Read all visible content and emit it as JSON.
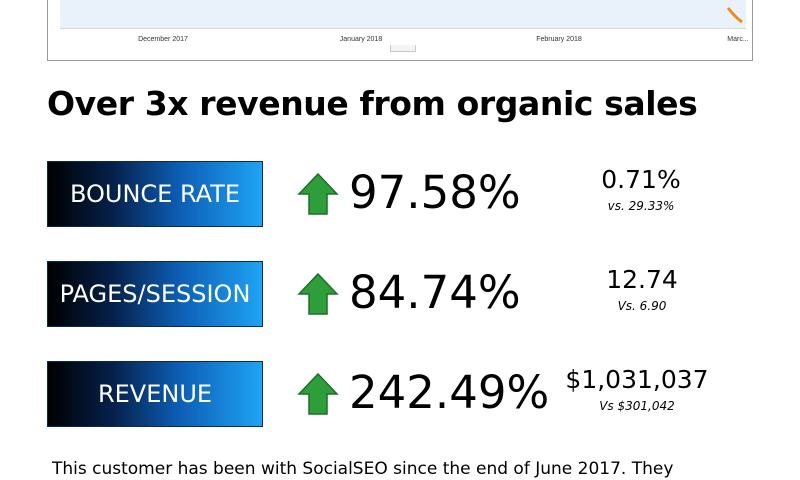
{
  "chart": {
    "x_labels": [
      "December 2017",
      "January 2018",
      "February 2018",
      "Marc..."
    ]
  },
  "headline": "Over 3x revenue from organic sales",
  "metrics": [
    {
      "label": "BOUNCE RATE",
      "change": "97.58%",
      "value": "0.71%",
      "compare": "vs. 29.33%"
    },
    {
      "label": "PAGES/SESSION",
      "change": "84.74%",
      "value": "12.74",
      "compare": "Vs. 6.90"
    },
    {
      "label": "REVENUE",
      "change": "242.49%",
      "value": "$1,031,037",
      "compare": "Vs $301,042"
    }
  ],
  "footer_text": "This customer has been with SocialSEO since the end of June 2017. They",
  "colors": {
    "arrow_green": "#2e9e3a",
    "chart_line": "#f08a1c",
    "label_gradient_end": "#1fa3f4"
  },
  "icons": {
    "increase": "green-up-arrow-icon"
  }
}
